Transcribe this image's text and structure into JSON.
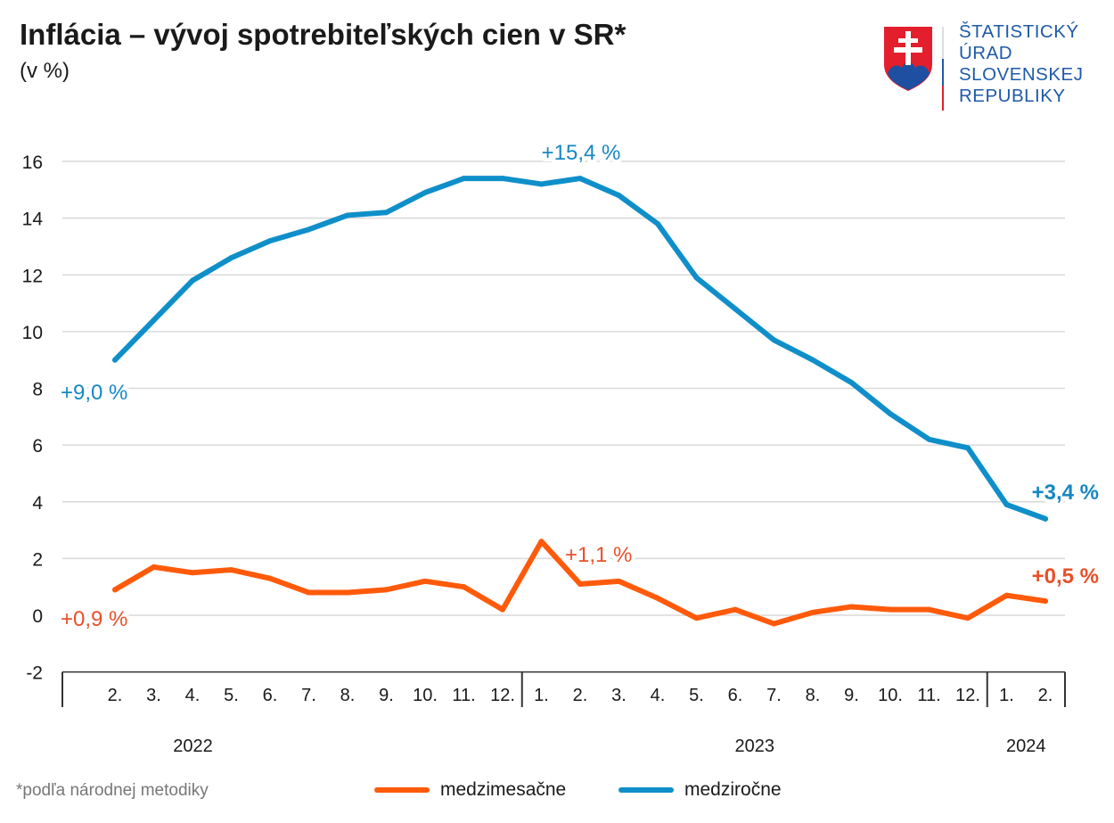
{
  "header": {
    "title": "Inflácia – vývoj spotrebiteľských cien v SR*",
    "subtitle": "(v %)"
  },
  "logo": {
    "lines": [
      "ŠTATISTICKÝ",
      "ÚRAD",
      "SLOVENSKEJ",
      "REPUBLIKY"
    ]
  },
  "footnote": "*podľa národnej metodiky",
  "colors": {
    "mom": "#ff5a0a",
    "yoy": "#0f8fc9",
    "mom_label": "#e8502a",
    "yoy_label": "#1787c2",
    "grid": "#d9d9d9"
  },
  "chart_data": {
    "type": "line",
    "title": "Inflácia – vývoj spotrebiteľských cien v SR*",
    "ylabel": "(v %)",
    "ylim": [
      -2,
      16
    ],
    "yticks": [
      -2,
      0,
      2,
      4,
      6,
      8,
      10,
      12,
      14,
      16
    ],
    "grid": true,
    "legend_position": "bottom",
    "categories": [
      "2.",
      "3.",
      "4.",
      "5.",
      "6.",
      "7.",
      "8.",
      "9.",
      "10.",
      "11.",
      "12.",
      "1.",
      "2.",
      "3.",
      "4.",
      "5.",
      "6.",
      "7.",
      "8.",
      "9.",
      "10.",
      "11.",
      "12.",
      "1.",
      "2."
    ],
    "years": [
      {
        "label": "2022",
        "start": 0,
        "end": 10
      },
      {
        "label": "2023",
        "start": 11,
        "end": 22
      },
      {
        "label": "2024",
        "start": 23,
        "end": 24
      }
    ],
    "series": [
      {
        "name": "medzimesačne",
        "color": "#ff5a0a",
        "values": [
          0.9,
          1.7,
          1.5,
          1.6,
          1.3,
          0.8,
          0.8,
          0.9,
          1.2,
          1.0,
          0.2,
          2.6,
          1.1,
          1.2,
          0.6,
          -0.1,
          0.2,
          -0.3,
          0.1,
          0.3,
          0.2,
          0.2,
          -0.1,
          0.7,
          0.5
        ]
      },
      {
        "name": "medziročne",
        "color": "#0f8fc9",
        "values": [
          9.0,
          10.4,
          11.8,
          12.6,
          13.2,
          13.6,
          14.1,
          14.2,
          14.9,
          15.4,
          15.4,
          15.2,
          15.4,
          14.8,
          13.8,
          11.9,
          10.8,
          9.7,
          9.0,
          8.2,
          7.1,
          6.2,
          5.9,
          3.9,
          3.4
        ]
      }
    ],
    "annotations": [
      {
        "text": "+9,0 %",
        "series": 1,
        "index": 0,
        "bold": false
      },
      {
        "text": "+15,4 %",
        "series": 1,
        "index": 12,
        "bold": false
      },
      {
        "text": "+3,4 %",
        "series": 1,
        "index": 24,
        "bold": true
      },
      {
        "text": "+0,9 %",
        "series": 0,
        "index": 0,
        "bold": false
      },
      {
        "text": "+1,1 %",
        "series": 0,
        "index": 12,
        "bold": false
      },
      {
        "text": "+0,5 %",
        "series": 0,
        "index": 24,
        "bold": true
      }
    ]
  }
}
